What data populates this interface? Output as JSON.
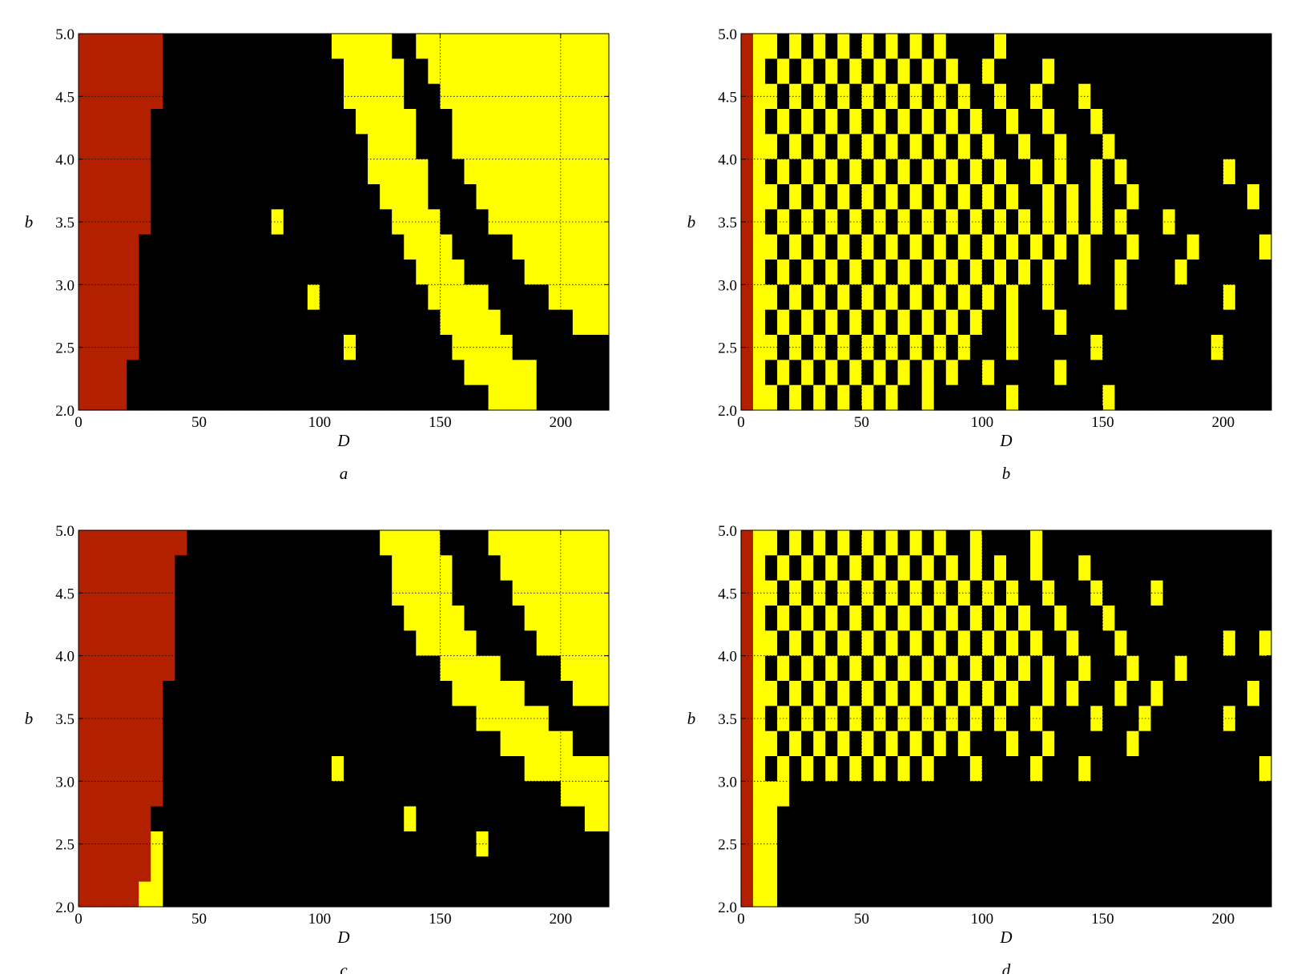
{
  "chart_data": [
    {
      "type": "heatmap",
      "caption": "a",
      "xlabel": "D",
      "ylabel": "b",
      "xlim": [
        0,
        220
      ],
      "ylim": [
        2,
        5
      ],
      "xticks": [
        0,
        50,
        100,
        150,
        200
      ],
      "yticks": [
        {
          "value": 2,
          "label": "2.0"
        },
        {
          "value": 2.5,
          "label": "2.5"
        },
        {
          "value": 3,
          "label": "3.0"
        },
        {
          "value": 3.5,
          "label": "3.5"
        },
        {
          "value": 4,
          "label": "4.0"
        },
        {
          "value": 4.5,
          "label": "4.5"
        },
        {
          "value": 5,
          "label": "5.0"
        }
      ],
      "grid": true,
      "colors": [
        "#b22000",
        "#000000",
        "#ffff00"
      ],
      "z": [
        "00000001111111111111122222112222222222222222",
        "00000001111111111111112222211222222222222222",
        "00000001111111111111112222211122222222222222",
        "00000011111111111111111222221112222222222222",
        "00000011111111111111111122221112222222222222",
        "00000011111111111111111122222111222222222222",
        "00000011111111111111111112222111122222222222",
        "00000011111111112111111111222211112222222222",
        "00000111111111111111111111122221111122222222",
        "00000111111111111111111111112222111112222222",
        "00000111111111111112111111111222221111122222",
        "00000111111111111111111111111122222111111222",
        "00000111111111111111112111111112222211111111",
        "00001111111111111111111111111111222222111111",
        "00001111111111111111111111111111112222111111"
      ]
    },
    {
      "type": "heatmap",
      "caption": "b",
      "xlabel": "D",
      "ylabel": "b",
      "xlim": [
        0,
        220
      ],
      "ylim": [
        2,
        5
      ],
      "xticks": [
        0,
        50,
        100,
        150,
        200
      ],
      "yticks": [
        {
          "value": 2,
          "label": "2.0"
        },
        {
          "value": 2.5,
          "label": "2.5"
        },
        {
          "value": 3,
          "label": "3.0"
        },
        {
          "value": 3.5,
          "label": "3.5"
        },
        {
          "value": 4,
          "label": "4.0"
        },
        {
          "value": 4.5,
          "label": "4.5"
        },
        {
          "value": 5,
          "label": "5.0"
        }
      ],
      "grid": true,
      "colors": [
        "#b22000",
        "#000000",
        "#ffff00"
      ],
      "z": [
        "02212121212121212111121111111111111111111111",
        "02121212121212121211211112111111111111111111",
        "02212121212121212121121121112111111111111111",
        "02121212121212121212112112111211111111111111",
        "02212121212121212121211211211121111111111111",
        "02121212121212121212121121211212111111112111",
        "02212121212121212121212112121211211111111121",
        "02121212121212121212121212121212111211111111",
        "02212121212121212121212121212111211112111112",
        "02121212121212121212121212112112111121111111",
        "02212121212121212121212112111112111111112111",
        "02121212121212121212112111211111111111111111",
        "02212121212121212121112111111211111111121111",
        "02121212121212121211211111211111111111111111",
        "02212121212121121111112111111121111111111111"
      ]
    },
    {
      "type": "heatmap",
      "caption": "c",
      "xlabel": "D",
      "ylabel": "b",
      "xlim": [
        0,
        220
      ],
      "ylim": [
        2,
        5
      ],
      "xticks": [
        0,
        50,
        100,
        150,
        200
      ],
      "yticks": [
        {
          "value": 2,
          "label": "2.0"
        },
        {
          "value": 2.5,
          "label": "2.5"
        },
        {
          "value": 3,
          "label": "3.0"
        },
        {
          "value": 3.5,
          "label": "3.5"
        },
        {
          "value": 4,
          "label": "4.0"
        },
        {
          "value": 4.5,
          "label": "4.5"
        },
        {
          "value": 5,
          "label": "5.0"
        }
      ],
      "grid": true,
      "colors": [
        "#b22000",
        "#000000",
        "#ffff00"
      ],
      "z": [
        "00000000011111111111111112222211112222222222",
        "00000000111111111111111111222221111222222222",
        "00000000111111111111111111222221111122222222",
        "00000000111111111111111111122222111112222222",
        "00000000111111111111111111112222211111222222",
        "00000000111111111111111111111122222111112222",
        "00000001111111111111111111111112222221111222",
        "00000001111111111111111111111111122222211111",
        "00000001111111111111111111111111111222222111",
        "00000001111111111111121111111111111112222222",
        "00000001111111111111111111111111111111112222",
        "00000011111111111111111111121111111111111122",
        "00000021111111111111111111111111121111111111",
        "00000021111111111111111111111111111111111111",
        "00000221111111111111111111111111111111111111"
      ]
    },
    {
      "type": "heatmap",
      "caption": "d",
      "xlabel": "D",
      "ylabel": "b",
      "xlim": [
        0,
        220
      ],
      "ylim": [
        2,
        5
      ],
      "xticks": [
        0,
        50,
        100,
        150,
        200
      ],
      "yticks": [
        {
          "value": 2,
          "label": "2.0"
        },
        {
          "value": 2.5,
          "label": "2.5"
        },
        {
          "value": 3,
          "label": "3.0"
        },
        {
          "value": 3.5,
          "label": "3.5"
        },
        {
          "value": 4,
          "label": "4.0"
        },
        {
          "value": 4.5,
          "label": "4.5"
        },
        {
          "value": 5,
          "label": "5.0"
        }
      ],
      "grid": true,
      "colors": [
        "#b22000",
        "#000000",
        "#ffff00"
      ],
      "z": [
        "02212121212121212112111121111111111111111111",
        "02121212121212121212121121112111111111111111",
        "02212121212121212121212112111211112111111111",
        "02121212121212121212121211211121111111111111",
        "02212121212121212121212121121112111111112112",
        "02121212121212121212121212112111211121111111",
        "02212121212121212121212112121112112111111121",
        "02121212121212121212121121111211121111112111",
        "02212121212121212121112112111111211111111111",
        "02121212121212121112111121112111111111111112",
        "02221111111111111111111111111111111111111111",
        "02211111111111111111111111111111111111111111",
        "02211111111111111111111111111111111111111111",
        "02211111111111111111111111111111111111111111",
        "02211111111111111111111111111111111111111111"
      ]
    }
  ]
}
